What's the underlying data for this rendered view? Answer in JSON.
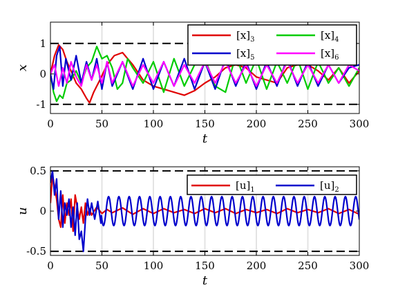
{
  "chart_data": [
    {
      "type": "line",
      "title": "",
      "xlabel": "t",
      "ylabel": "x",
      "xlim": [
        0,
        300
      ],
      "ylim": [
        -1.3,
        1.7
      ],
      "xticks": [
        "0",
        "50",
        "100",
        "150",
        "200",
        "250",
        "300"
      ],
      "yticks": [
        "1",
        "0",
        "-1"
      ],
      "grid": "x-only",
      "bounds": [
        1,
        -1
      ],
      "legend_position": "top-right",
      "series": [
        {
          "name": "[x]3",
          "label_base": "[x]",
          "label_sub": "3",
          "color": "#e00000",
          "x": [
            0,
            4,
            8,
            12,
            16,
            20,
            25,
            30,
            35,
            38,
            42,
            48,
            55,
            62,
            70,
            75,
            80,
            90,
            100,
            110,
            120,
            130,
            140,
            150,
            160,
            170,
            180,
            190,
            200,
            210,
            220,
            230,
            240,
            250,
            260,
            270,
            280,
            290,
            300
          ],
          "y": [
            0,
            0.6,
            0.95,
            0.8,
            0.4,
            0.1,
            -0.3,
            -0.5,
            -0.8,
            -0.95,
            -0.6,
            -0.2,
            0.3,
            0.6,
            0.7,
            0.5,
            0.3,
            -0.2,
            -0.4,
            -0.5,
            -0.6,
            -0.7,
            -0.55,
            -0.3,
            -0.1,
            0.2,
            0.3,
            0.2,
            -0.1,
            -0.2,
            -0.3,
            0.2,
            0.3,
            0.3,
            0.1,
            -0.2,
            0.2,
            -0.3,
            0.1
          ]
        },
        {
          "name": "[x]4",
          "label_base": "[x]",
          "label_sub": "4",
          "color": "#00cc00",
          "x": [
            0,
            3,
            6,
            9,
            12,
            16,
            20,
            25,
            30,
            35,
            40,
            45,
            50,
            55,
            60,
            65,
            70,
            75,
            80,
            90,
            100,
            110,
            120,
            130,
            140,
            150,
            160,
            170,
            180,
            190,
            200,
            210,
            220,
            230,
            240,
            250,
            260,
            270,
            280,
            290,
            300
          ],
          "y": [
            0,
            -0.6,
            -0.9,
            -0.7,
            -0.8,
            -0.3,
            -0.2,
            0.1,
            -0.3,
            0.2,
            0.4,
            0.9,
            0.5,
            0.6,
            0.2,
            -0.5,
            -0.3,
            0.5,
            0.2,
            -0.3,
            0.4,
            -0.6,
            0.5,
            -0.4,
            0.3,
            0.5,
            -0.4,
            -0.6,
            0.6,
            -0.3,
            0.5,
            -0.5,
            0.4,
            -0.3,
            0.5,
            -0.5,
            0.4,
            -0.3,
            0.2,
            -0.4,
            0.2
          ]
        },
        {
          "name": "[x]5",
          "label_base": "[x]",
          "label_sub": "5",
          "color": "#0000cc",
          "amplitude": 0.5,
          "period": 12,
          "x": [
            0,
            3,
            6,
            9,
            12,
            15,
            20,
            25,
            30,
            35,
            40,
            45,
            50,
            55,
            60,
            70,
            80,
            90,
            100,
            110,
            120,
            130,
            140,
            150,
            160,
            170,
            180,
            190,
            200,
            210,
            220,
            230,
            240,
            250,
            260,
            270,
            280,
            290,
            300
          ],
          "y": [
            0,
            -0.5,
            0.6,
            0.9,
            -0.4,
            0.5,
            -0.2,
            0.6,
            -0.3,
            0.4,
            -0.2,
            0.5,
            -0.5,
            0.4,
            -0.4,
            0.4,
            -0.5,
            0.5,
            -0.5,
            0.4,
            -0.4,
            0.5,
            -0.5,
            0.4,
            -0.5,
            0.5,
            -0.4,
            0.4,
            -0.5,
            0.4,
            -0.4,
            0.5,
            -0.4,
            0.4,
            -0.4,
            0.3,
            -0.3,
            0.2,
            0.3
          ]
        },
        {
          "name": "[x]6",
          "label_base": "[x]",
          "label_sub": "6",
          "color": "#ff00ff",
          "x": [
            0,
            4,
            8,
            12,
            16,
            20,
            25,
            30,
            35,
            40,
            45,
            50,
            55,
            60,
            70,
            80,
            90,
            100,
            110,
            120,
            130,
            140,
            150,
            160,
            170,
            180,
            190,
            200,
            210,
            220,
            230,
            240,
            250,
            260,
            270,
            280,
            290,
            300
          ],
          "y": [
            0,
            0.3,
            -0.4,
            0.2,
            -0.3,
            0.4,
            -0.1,
            -0.4,
            0.3,
            -0.2,
            0.3,
            -0.3,
            0.4,
            -0.3,
            0.4,
            -0.4,
            0.3,
            -0.3,
            0.4,
            -0.4,
            0.3,
            -0.3,
            0.4,
            -0.3,
            0.4,
            -0.3,
            0.3,
            -0.4,
            0.3,
            -0.3,
            0.4,
            -0.3,
            0.3,
            -0.3,
            0.3,
            -0.3,
            0.3,
            0.1
          ]
        }
      ]
    },
    {
      "type": "line",
      "title": "",
      "xlabel": "t",
      "ylabel": "u",
      "xlim": [
        0,
        300
      ],
      "ylim": [
        -0.55,
        0.55
      ],
      "xticks": [
        "0",
        "50",
        "100",
        "150",
        "200",
        "250",
        "300"
      ],
      "yticks": [
        "0.5",
        "0",
        "-0.5"
      ],
      "grid": "x-only",
      "bounds": [
        0.5,
        -0.5
      ],
      "legend_position": "top-right",
      "series": [
        {
          "name": "[u]1",
          "label_base": "[u]",
          "label_sub": "1",
          "color": "#e00000",
          "x": [
            0,
            2,
            4,
            6,
            8,
            10,
            12,
            14,
            16,
            18,
            20,
            22,
            24,
            26,
            28,
            30,
            32,
            34,
            36,
            38,
            40,
            45,
            50,
            55,
            60,
            70,
            80,
            90,
            100,
            110,
            120,
            130,
            140,
            150,
            160,
            170,
            180,
            190,
            200,
            210,
            220,
            230,
            240,
            250,
            260,
            270,
            280,
            290,
            300
          ],
          "y": [
            0.1,
            0.45,
            0.3,
            0.15,
            -0.1,
            -0.2,
            0.2,
            -0.15,
            0.1,
            -0.05,
            0.15,
            -0.25,
            0.2,
            0.05,
            -0.1,
            0.05,
            -0.15,
            0.1,
            -0.05,
            0.03,
            -0.05,
            0.05,
            -0.03,
            0.02,
            -0.02,
            0.04,
            -0.04,
            0.03,
            -0.03,
            0.03,
            -0.02,
            0.02,
            -0.03,
            0.03,
            -0.02,
            0.03,
            -0.03,
            0.02,
            -0.02,
            0.02,
            -0.03,
            0.03,
            -0.02,
            0.02,
            -0.02,
            0.03,
            -0.03,
            0.02,
            -0.04
          ]
        },
        {
          "name": "[u]2",
          "label_base": "[u]",
          "label_sub": "2",
          "color": "#0000cc",
          "amplitude": 0.18,
          "period": 10,
          "x": [
            0,
            2,
            4,
            6,
            8,
            10,
            12,
            14,
            16,
            18,
            20,
            22,
            24,
            26,
            28,
            30,
            32,
            34,
            36,
            38,
            40,
            43,
            46,
            49
          ],
          "y": [
            0.35,
            0.5,
            0.2,
            0.4,
            -0.1,
            0.25,
            -0.2,
            0.1,
            -0.05,
            0.15,
            -0.2,
            0.05,
            -0.3,
            0.1,
            -0.35,
            -0.25,
            -0.5,
            -0.1,
            0.15,
            -0.05,
            0.1,
            -0.1,
            0.12,
            -0.15
          ]
        }
      ]
    }
  ]
}
